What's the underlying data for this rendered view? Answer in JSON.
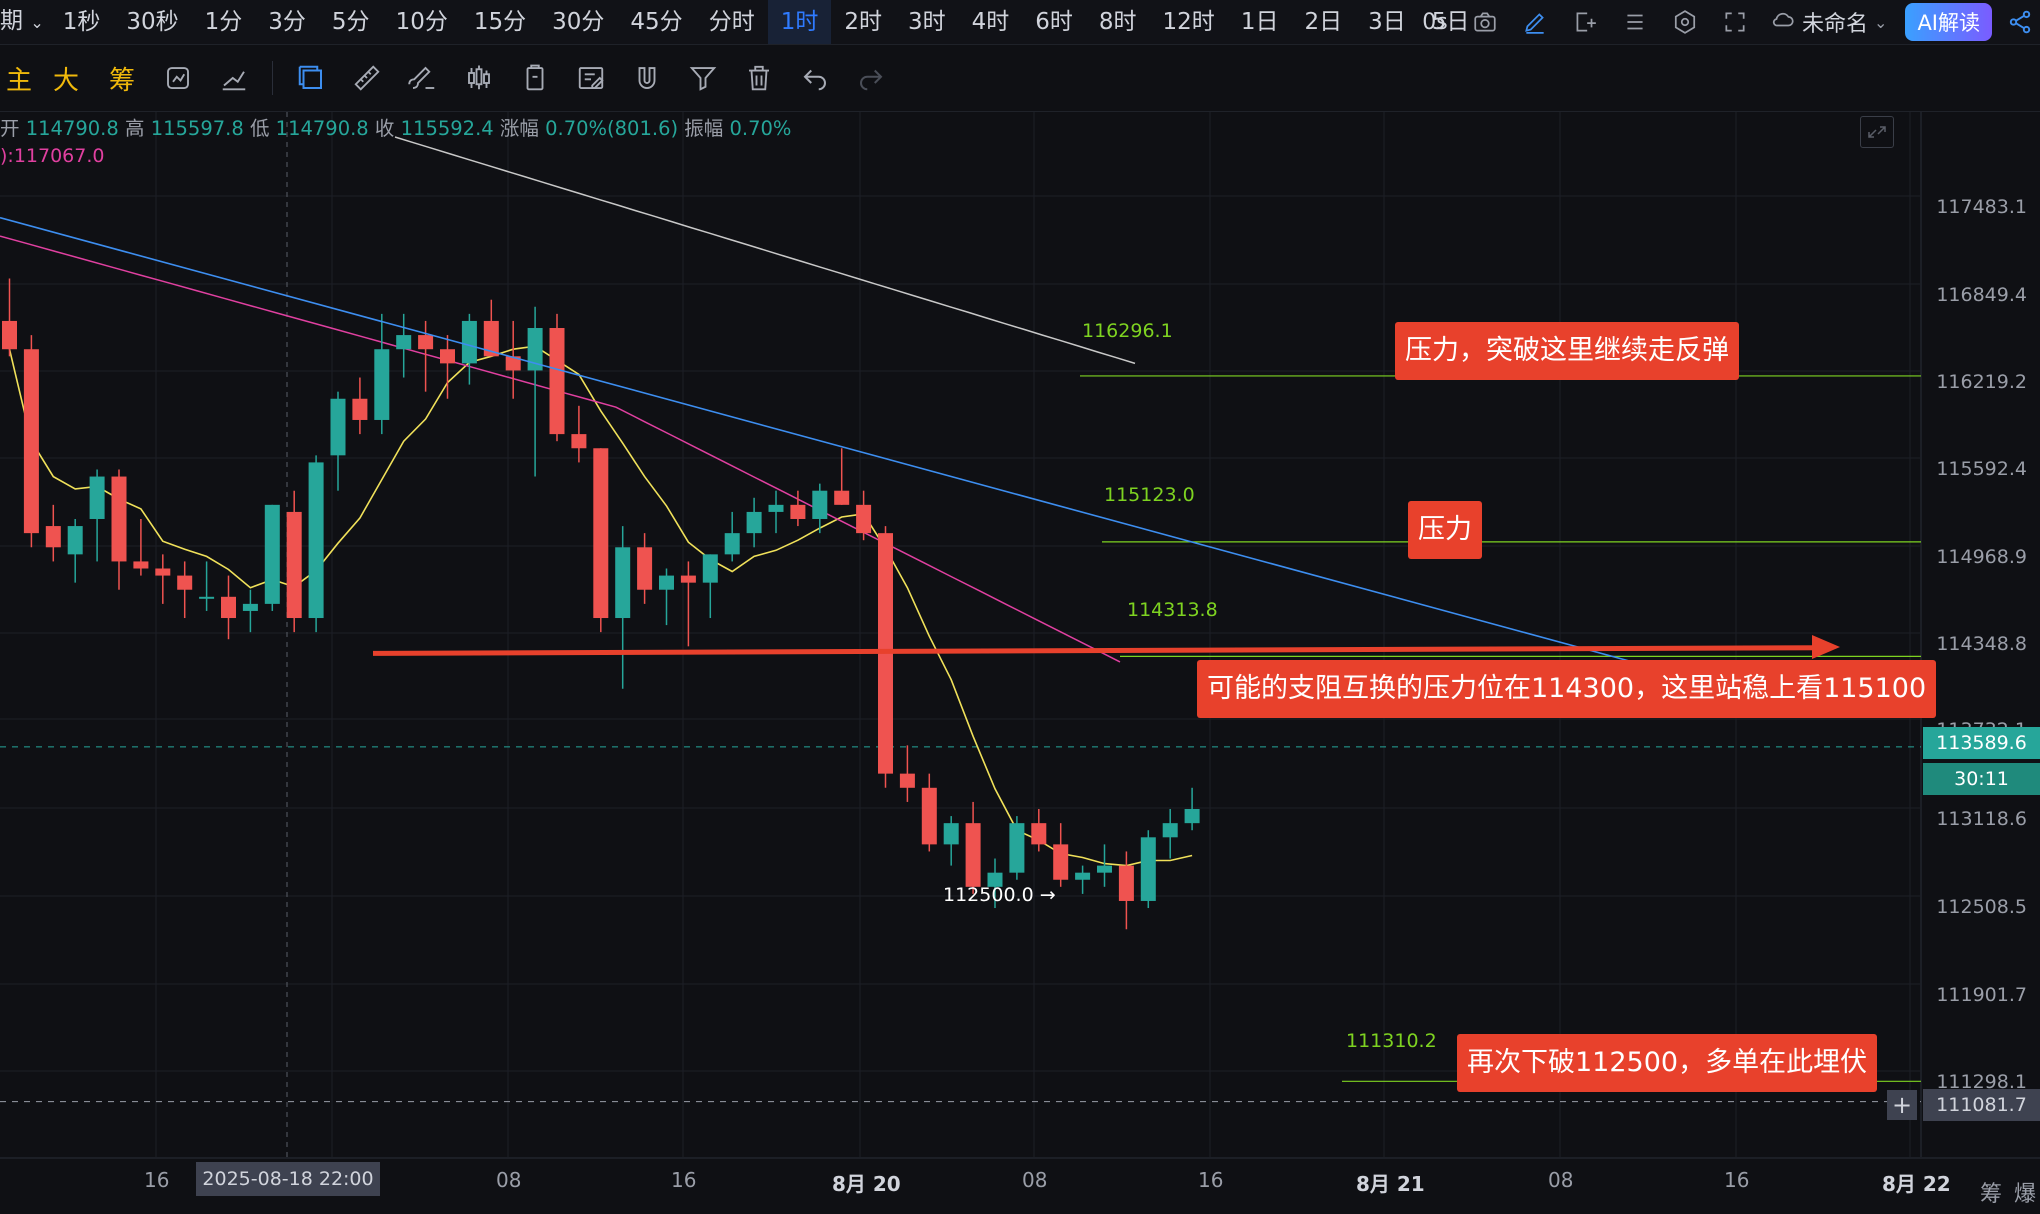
{
  "topbar": {
    "period_label": "期",
    "timeframes": [
      "1秒",
      "30秒",
      "1分",
      "3分",
      "5分",
      "10分",
      "15分",
      "30分",
      "45分",
      "分时",
      "1时",
      "2时",
      "3时",
      "4时",
      "6时",
      "8时",
      "12时",
      "1日",
      "2日",
      "3日",
      "5日"
    ],
    "active_timeframe": "1时",
    "latency": "0s",
    "project_name": "未命名",
    "ai_button": "AI解读"
  },
  "toolbar2": {
    "main_label": "主",
    "big_label": "大",
    "chip_label": "筹"
  },
  "ohlc": {
    "open_label": "开",
    "open": "114790.8",
    "high_label": "高",
    "high": "115597.8",
    "low_label": "低",
    "low": "114790.8",
    "close_label": "收",
    "close": "115592.4",
    "change_label": "涨幅",
    "change": "0.70%(801.6)",
    "amp_label": "振幅",
    "amp": "0.70%"
  },
  "ma_label": "):117067.0",
  "colors": {
    "up": "#26a69a",
    "down": "#ef5350",
    "ma_yellow": "#f0e15a",
    "ma_pink": "#e040a0",
    "ma_gray": "#c8c8c8",
    "trend_blue": "#3d8ef0",
    "level_green": "#7ed321",
    "note_red": "#e8412c"
  },
  "price_axis": [
    "117483.1",
    "116849.4",
    "116219.2",
    "115592.4",
    "114968.9",
    "114348.8",
    "113732.1",
    "113118.6",
    "112508.5",
    "111901.7",
    "111298.1"
  ],
  "last_price": "113589.6",
  "countdown": "30:11",
  "crosshair_price": "111081.7",
  "date_axis": {
    "labels": [
      {
        "t": "16",
        "bold": false
      },
      {
        "t": "08",
        "bold": false
      },
      {
        "t": "16",
        "bold": false
      },
      {
        "t": "8月 20",
        "bold": true
      },
      {
        "t": "08",
        "bold": false
      },
      {
        "t": "16",
        "bold": false
      },
      {
        "t": "8月 21",
        "bold": true
      },
      {
        "t": "08",
        "bold": false
      },
      {
        "t": "16",
        "bold": false
      },
      {
        "t": "8月 22",
        "bold": true
      }
    ],
    "crosshair_date": "2025-08-18 22:00",
    "corner_a": "筹",
    "corner_b": "爆"
  },
  "levels": [
    "116296.1",
    "115123.0",
    "114313.8",
    "111310.2"
  ],
  "low_marker": "112500.0 →",
  "notes": {
    "n1": "压力，突破这里继续走反弹",
    "n2": "压力",
    "n3": "可能的支阻互换的压力位在114300，这里站稳上看115100",
    "n4": "再次下破112500，多单在此埋伏"
  },
  "candles": [
    [
      116600,
      116900,
      116350,
      116400
    ],
    [
      116400,
      116500,
      115000,
      115100
    ],
    [
      115150,
      115300,
      114900,
      115000
    ],
    [
      114950,
      115200,
      114750,
      115150
    ],
    [
      115200,
      115550,
      114900,
      115500
    ],
    [
      115500,
      115550,
      114700,
      114900
    ],
    [
      114900,
      115200,
      114800,
      114850
    ],
    [
      114850,
      114950,
      114600,
      114800
    ],
    [
      114800,
      114900,
      114500,
      114700
    ],
    [
      114650,
      114900,
      114550,
      114650
    ],
    [
      114650,
      114800,
      114350,
      114500
    ],
    [
      114550,
      114700,
      114400,
      114600
    ],
    [
      114600,
      115300,
      114550,
      115300
    ],
    [
      115250,
      115400,
      114400,
      114500
    ],
    [
      114500,
      115650,
      114400,
      115600
    ],
    [
      115650,
      116100,
      115400,
      116050
    ],
    [
      116050,
      116200,
      115800,
      115900
    ],
    [
      115900,
      116650,
      115800,
      116400
    ],
    [
      116400,
      116650,
      116200,
      116500
    ],
    [
      116500,
      116600,
      116100,
      116400
    ],
    [
      116400,
      116500,
      116050,
      116300
    ],
    [
      116300,
      116650,
      116150,
      116600
    ],
    [
      116600,
      116750,
      116350,
      116350
    ],
    [
      116350,
      116600,
      116050,
      116250
    ],
    [
      116250,
      116700,
      115500,
      116550
    ],
    [
      116550,
      116650,
      115750,
      115800
    ],
    [
      115800,
      116000,
      115600,
      115700
    ],
    [
      115700,
      115700,
      114400,
      114500
    ],
    [
      114500,
      115150,
      114000,
      115000
    ],
    [
      115000,
      115100,
      114600,
      114700
    ],
    [
      114700,
      114850,
      114450,
      114800
    ],
    [
      114800,
      114900,
      114300,
      114750
    ],
    [
      114750,
      114950,
      114500,
      114950
    ],
    [
      114950,
      115250,
      114900,
      115100
    ],
    [
      115100,
      115350,
      115000,
      115250
    ],
    [
      115250,
      115400,
      115100,
      115300
    ],
    [
      115300,
      115400,
      115150,
      115200
    ],
    [
      115200,
      115450,
      115100,
      115400
    ],
    [
      115400,
      115700,
      115300,
      115300
    ],
    [
      115300,
      115400,
      115050,
      115100
    ],
    [
      115100,
      115150,
      113300,
      113400
    ],
    [
      113400,
      113600,
      113200,
      113300
    ],
    [
      113300,
      113400,
      112850,
      112900
    ],
    [
      112900,
      113100,
      112750,
      113050
    ],
    [
      113050,
      113200,
      112550,
      112600
    ],
    [
      112600,
      112800,
      112450,
      112700
    ],
    [
      112700,
      113100,
      112650,
      113050
    ],
    [
      113050,
      113150,
      112850,
      112900
    ],
    [
      112900,
      113050,
      112600,
      112650
    ],
    [
      112650,
      112750,
      112550,
      112700
    ],
    [
      112700,
      112900,
      112600,
      112750
    ],
    [
      112750,
      112850,
      112300,
      112500
    ],
    [
      112500,
      113000,
      112450,
      112950
    ],
    [
      112950,
      113150,
      112800,
      113050
    ],
    [
      113050,
      113300,
      113000,
      113150
    ]
  ]
}
